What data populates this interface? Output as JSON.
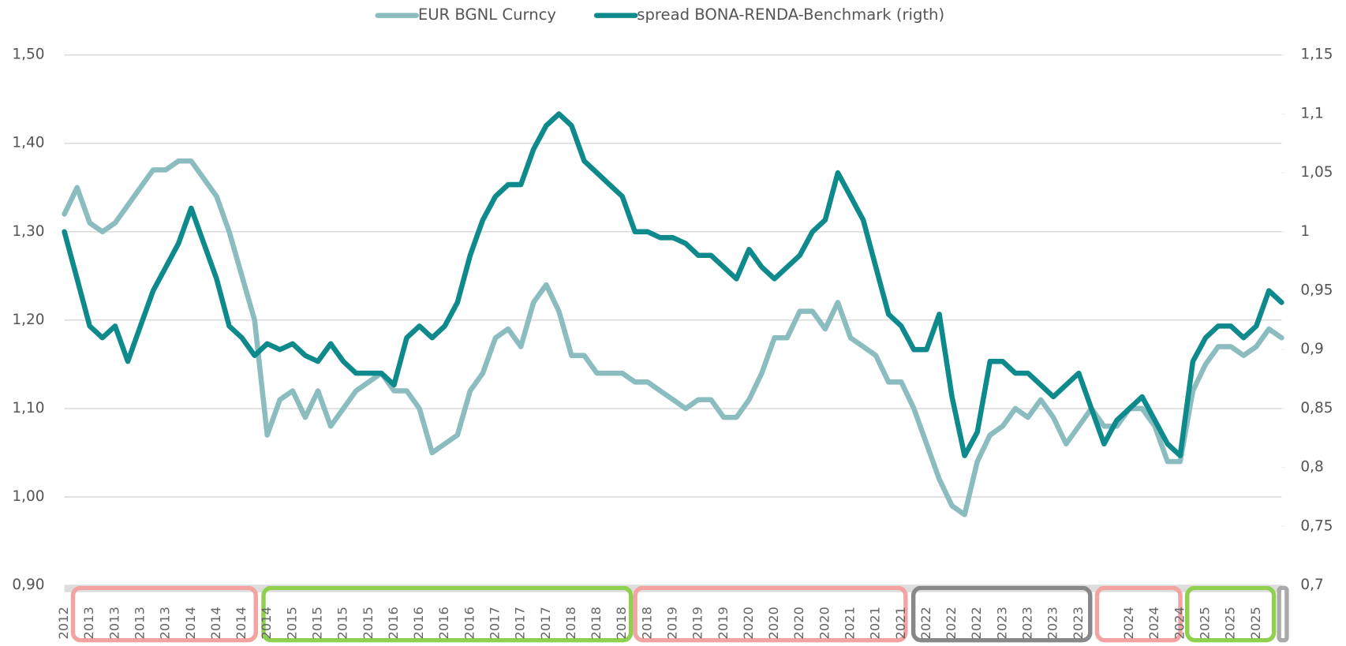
{
  "chart_data": {
    "type": "line",
    "categories": [
      "2012",
      null,
      "2013",
      null,
      "2013",
      null,
      "2013",
      null,
      "2013",
      null,
      "2014",
      null,
      "2014",
      null,
      "2014",
      null,
      "2014",
      null,
      "2015",
      null,
      "2015",
      null,
      "2015",
      null,
      "2015",
      null,
      "2016",
      null,
      "2016",
      null,
      "2016",
      null,
      "2016",
      null,
      "2017",
      null,
      "2017",
      null,
      "2017",
      null,
      "2018",
      null,
      "2018",
      null,
      "2018",
      null,
      "2018",
      null,
      "2019",
      null,
      "2019",
      null,
      "2019",
      null,
      "2020",
      null,
      "2020",
      null,
      "2020",
      null,
      "2020",
      null,
      "2021",
      null,
      "2021",
      null,
      "2021",
      null,
      "2022",
      null,
      "2022",
      null,
      "2022",
      null,
      "2023",
      null,
      "2023",
      null,
      "2023",
      null,
      "2023",
      null,
      null,
      null,
      "2024",
      null,
      "2024",
      null,
      "2024",
      null,
      "2025",
      null,
      "2025",
      null,
      "2025",
      null,
      null
    ],
    "series": [
      {
        "name": "EUR BGNL Curncy",
        "color": "#8bbcbf",
        "values": [
          1.32,
          1.35,
          1.31,
          1.3,
          1.31,
          1.33,
          1.35,
          1.37,
          1.37,
          1.38,
          1.38,
          1.36,
          1.34,
          1.3,
          1.25,
          1.2,
          1.07,
          1.11,
          1.12,
          1.09,
          1.12,
          1.08,
          1.1,
          1.12,
          1.13,
          1.14,
          1.12,
          1.12,
          1.1,
          1.05,
          1.06,
          1.07,
          1.12,
          1.14,
          1.18,
          1.19,
          1.17,
          1.22,
          1.24,
          1.21,
          1.16,
          1.16,
          1.14,
          1.14,
          1.14,
          1.13,
          1.13,
          1.12,
          1.11,
          1.1,
          1.11,
          1.11,
          1.09,
          1.09,
          1.11,
          1.14,
          1.18,
          1.18,
          1.21,
          1.21,
          1.19,
          1.22,
          1.18,
          1.17,
          1.16,
          1.13,
          1.13,
          1.1,
          1.06,
          1.02,
          0.99,
          0.98,
          1.04,
          1.07,
          1.08,
          1.1,
          1.09,
          1.11,
          1.09,
          1.06,
          1.08,
          1.1,
          1.08,
          1.08,
          1.1,
          1.1,
          1.08,
          1.04,
          1.04,
          1.12,
          1.15,
          1.17,
          1.17,
          1.16,
          1.17,
          1.19,
          1.18
        ]
      },
      {
        "name": "spread BONA-RENDA-Benchmark (rigth)",
        "color": "#0e8a8c",
        "axis": "y2",
        "values": [
          1.0,
          0.96,
          0.92,
          0.91,
          0.92,
          0.89,
          0.92,
          0.95,
          0.97,
          0.99,
          1.02,
          0.99,
          0.96,
          0.92,
          0.91,
          0.895,
          0.905,
          0.9,
          0.905,
          0.895,
          0.89,
          0.905,
          0.89,
          0.88,
          0.88,
          0.88,
          0.87,
          0.91,
          0.92,
          0.91,
          0.92,
          0.94,
          0.98,
          1.01,
          1.03,
          1.04,
          1.04,
          1.07,
          1.09,
          1.1,
          1.09,
          1.06,
          1.05,
          1.04,
          1.03,
          1.0,
          1.0,
          0.995,
          0.995,
          0.99,
          0.98,
          0.98,
          0.97,
          0.96,
          0.985,
          0.97,
          0.96,
          0.97,
          0.98,
          1.0,
          1.01,
          1.05,
          1.03,
          1.01,
          0.97,
          0.93,
          0.92,
          0.9,
          0.9,
          0.93,
          0.86,
          0.81,
          0.83,
          0.89,
          0.89,
          0.88,
          0.88,
          0.87,
          0.86,
          0.87,
          0.88,
          0.85,
          0.82,
          0.84,
          0.85,
          0.86,
          0.84,
          0.82,
          0.81,
          0.89,
          0.91,
          0.92,
          0.92,
          0.91,
          0.92,
          0.95,
          0.94
        ]
      }
    ],
    "ylim": [
      0.9,
      1.5
    ],
    "yticks": [
      {
        "value": 0.9,
        "label": "0,90"
      },
      {
        "value": 1.0,
        "label": "1,00"
      },
      {
        "value": 1.1,
        "label": "1,10"
      },
      {
        "value": 1.2,
        "label": "1,20"
      },
      {
        "value": 1.3,
        "label": "1,30"
      },
      {
        "value": 1.4,
        "label": "1,40"
      },
      {
        "value": 1.5,
        "label": "1,50"
      }
    ],
    "y2lim": [
      0.7,
      1.15
    ],
    "y2ticks": [
      {
        "value": 0.7,
        "label": "0,7"
      },
      {
        "value": 0.75,
        "label": "0,75"
      },
      {
        "value": 0.8,
        "label": "0,8"
      },
      {
        "value": 0.85,
        "label": "0,85"
      },
      {
        "value": 0.9,
        "label": "0,9"
      },
      {
        "value": 0.95,
        "label": "0,95"
      },
      1,
      {
        "value": 1.05,
        "label": "1,05"
      },
      {
        "value": 1.1,
        "label": "1,1"
      },
      {
        "value": 1.15,
        "label": "1,15"
      }
    ],
    "grid": true,
    "legend": "top"
  }
}
